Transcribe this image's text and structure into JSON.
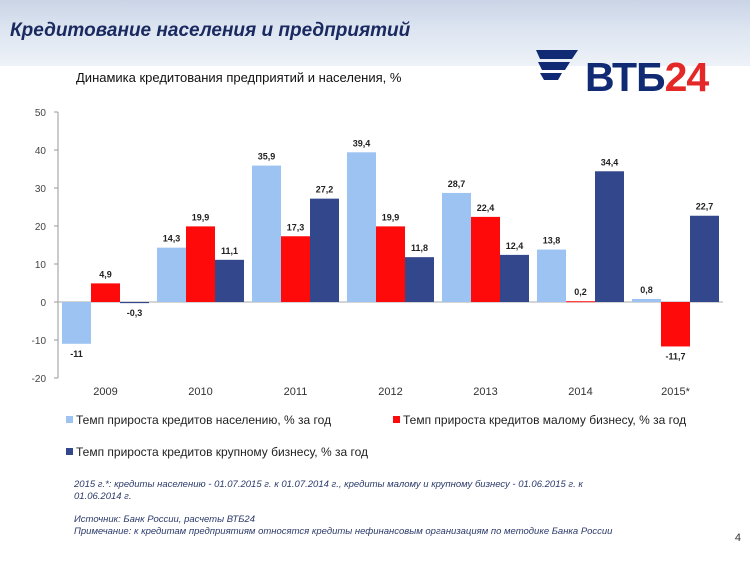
{
  "slide": {
    "title": "Кредитование населения и предприятий",
    "page_number": "4"
  },
  "logo": {
    "text": "ВТБ",
    "number": "24"
  },
  "colors": {
    "series1": "#9dc3f2",
    "series2": "#ff0a0a",
    "series3": "#33478c"
  },
  "chart_data": {
    "type": "bar",
    "title": "Динамика кредитования предприятий и населения, %",
    "categories": [
      "2009",
      "2010",
      "2011",
      "2012",
      "2013",
      "2014",
      "2015*"
    ],
    "series": [
      {
        "name": "Темп прироста кредитов населению, % за год",
        "values": [
          -11,
          14.3,
          35.9,
          39.4,
          28.7,
          13.8,
          0.8
        ],
        "labels": [
          "-11",
          "14,3",
          "35,9",
          "39,4",
          "28,7",
          "13,8",
          "0,8"
        ]
      },
      {
        "name": "Темп прироста кредитов малому бизнесу, % за год",
        "values": [
          4.9,
          19.9,
          17.3,
          19.9,
          22.4,
          0.2,
          -11.7
        ],
        "labels": [
          "4,9",
          "19,9",
          "17,3",
          "19,9",
          "22,4",
          "0,2",
          "-11,7"
        ]
      },
      {
        "name": "Темп прироста кредитов крупному бизнесу, % за год",
        "values": [
          -0.3,
          11.1,
          27.2,
          11.8,
          12.4,
          34.4,
          22.7
        ],
        "labels": [
          "-0,3",
          "11,1",
          "27,2",
          "11,8",
          "12,4",
          "34,4",
          "22,7"
        ]
      }
    ],
    "yticks": [
      50,
      40,
      30,
      20,
      10,
      0,
      -10,
      -20
    ],
    "ylim": [
      -20,
      50
    ],
    "grid": false,
    "legend_position": "bottom"
  },
  "notes": {
    "line1": "2015 г.*: кредиты населению - 01.07.2015 г. к 01.07.2014 г., кредиты малому и крупному бизнесу - 01.06.2015 г. к",
    "line2": "01.06.2014 г.",
    "source": "Источник: Банк России, расчеты ВТБ24",
    "remark": "Примечание: к кредитам предприятиям относятся кредиты нефинансовым организациям по методике Банка России"
  }
}
